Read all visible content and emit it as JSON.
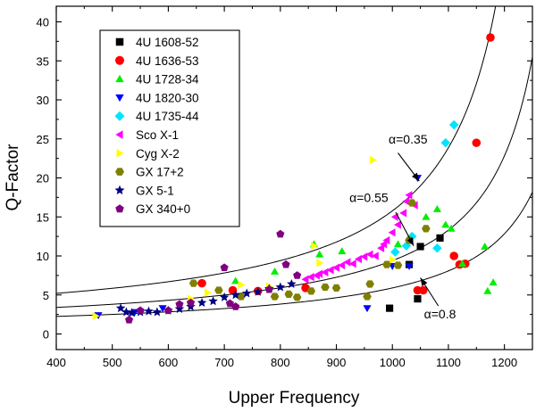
{
  "chart_data": {
    "type": "scatter",
    "title": "",
    "xlabel": "Upper Frequency",
    "ylabel": "Q-Factor",
    "xlim": [
      400,
      1250
    ],
    "ylim": [
      -2,
      42
    ],
    "x_ticks": [
      400,
      500,
      600,
      700,
      800,
      900,
      1000,
      1100,
      1200
    ],
    "y_ticks": [
      0,
      5,
      10,
      15,
      20,
      25,
      30,
      35,
      40
    ],
    "grid": false,
    "legend_position": "top-left",
    "series": [
      {
        "name": "4U 1608-52",
        "marker": "square",
        "color": "#000000",
        "points": [
          [
            995,
            3.3
          ],
          [
            1030,
            8.9
          ],
          [
            1045,
            4.5
          ],
          [
            1050,
            11.2
          ],
          [
            1085,
            12.3
          ]
        ]
      },
      {
        "name": "4U 1636-53",
        "marker": "circle",
        "color": "#ff0000",
        "points": [
          [
            660,
            6.5
          ],
          [
            715,
            5.6
          ],
          [
            760,
            5.5
          ],
          [
            845,
            5.9
          ],
          [
            1045,
            5.6
          ],
          [
            1055,
            5.6
          ],
          [
            1110,
            10.0
          ],
          [
            1120,
            8.9
          ],
          [
            1130,
            9.0
          ],
          [
            1150,
            24.5
          ],
          [
            1175,
            38.0
          ]
        ]
      },
      {
        "name": "4U 1728-34",
        "marker": "triangle-up",
        "color": "#00ee00",
        "points": [
          [
            720,
            6.8
          ],
          [
            790,
            8.0
          ],
          [
            860,
            11.5
          ],
          [
            870,
            10.2
          ],
          [
            910,
            10.6
          ],
          [
            1010,
            11.5
          ],
          [
            1060,
            15.0
          ],
          [
            1080,
            16.0
          ],
          [
            1095,
            14.0
          ],
          [
            1105,
            13.5
          ],
          [
            1125,
            9.0
          ],
          [
            1165,
            11.2
          ],
          [
            1170,
            5.5
          ],
          [
            1180,
            6.6
          ]
        ]
      },
      {
        "name": "4U 1820-30",
        "marker": "triangle-down",
        "color": "#0000ff",
        "points": [
          [
            475,
            2.4
          ],
          [
            540,
            2.8
          ],
          [
            590,
            3.3
          ],
          [
            955,
            3.3
          ],
          [
            1000,
            8.7
          ],
          [
            1030,
            8.7
          ],
          [
            1045,
            20.0
          ]
        ]
      },
      {
        "name": "4U 1735-44",
        "marker": "diamond",
        "color": "#00e5ff",
        "points": [
          [
            1005,
            10.5
          ],
          [
            1025,
            11.3
          ],
          [
            1035,
            12.5
          ],
          [
            1080,
            11.0
          ],
          [
            1095,
            24.5
          ],
          [
            1110,
            26.8
          ]
        ]
      },
      {
        "name": "Sco X-1",
        "marker": "triangle-left",
        "color": "#ff00ff",
        "points": [
          [
            845,
            7.0
          ],
          [
            855,
            7.3
          ],
          [
            865,
            7.5
          ],
          [
            870,
            7.7
          ],
          [
            880,
            7.9
          ],
          [
            890,
            8.2
          ],
          [
            900,
            8.5
          ],
          [
            910,
            8.8
          ],
          [
            920,
            9.2
          ],
          [
            930,
            9.0
          ],
          [
            940,
            9.6
          ],
          [
            950,
            9.9
          ],
          [
            960,
            10.2
          ],
          [
            970,
            10.0
          ],
          [
            980,
            11.0
          ],
          [
            990,
            12.0
          ],
          [
            1000,
            13.0
          ],
          [
            1010,
            14.0
          ],
          [
            1020,
            15.5
          ],
          [
            1025,
            17.0
          ],
          [
            1030,
            17.8
          ],
          [
            1040,
            16.5
          ],
          [
            1005,
            15.0
          ],
          [
            985,
            11.5
          ]
        ]
      },
      {
        "name": "Cyg X-2",
        "marker": "triangle-right",
        "color": "#ffff00",
        "points": [
          [
            470,
            2.3
          ],
          [
            640,
            4.5
          ],
          [
            670,
            5.3
          ],
          [
            730,
            6.3
          ],
          [
            780,
            6.1
          ],
          [
            860,
            11.3
          ],
          [
            870,
            9.1
          ],
          [
            965,
            22.3
          ],
          [
            1000,
            9.5
          ]
        ]
      },
      {
        "name": "GX 17+2",
        "marker": "hexagon",
        "color": "#808000",
        "points": [
          [
            645,
            6.5
          ],
          [
            690,
            5.6
          ],
          [
            730,
            4.8
          ],
          [
            790,
            4.8
          ],
          [
            815,
            5.1
          ],
          [
            830,
            4.7
          ],
          [
            855,
            5.5
          ],
          [
            880,
            6.0
          ],
          [
            900,
            5.9
          ],
          [
            955,
            4.8
          ],
          [
            960,
            6.4
          ],
          [
            990,
            8.9
          ],
          [
            1010,
            8.8
          ],
          [
            1030,
            12.0
          ],
          [
            1035,
            16.8
          ],
          [
            1060,
            13.5
          ]
        ]
      },
      {
        "name": "GX 5-1",
        "marker": "star",
        "color": "#000080",
        "points": [
          [
            515,
            3.3
          ],
          [
            525,
            2.8
          ],
          [
            535,
            2.7
          ],
          [
            550,
            2.8
          ],
          [
            565,
            2.9
          ],
          [
            580,
            2.8
          ],
          [
            600,
            3.0
          ],
          [
            620,
            3.2
          ],
          [
            640,
            3.5
          ],
          [
            660,
            4.0
          ],
          [
            680,
            4.2
          ],
          [
            700,
            4.7
          ],
          [
            720,
            5.0
          ],
          [
            740,
            5.2
          ],
          [
            760,
            5.4
          ],
          [
            780,
            5.8
          ],
          [
            800,
            6.0
          ],
          [
            820,
            6.4
          ]
        ]
      },
      {
        "name": "GX 340+0",
        "marker": "pentagon",
        "color": "#800080",
        "points": [
          [
            530,
            1.8
          ],
          [
            550,
            3.0
          ],
          [
            600,
            3.0
          ],
          [
            620,
            3.8
          ],
          [
            640,
            4.0
          ],
          [
            700,
            8.5
          ],
          [
            710,
            3.9
          ],
          [
            720,
            3.5
          ],
          [
            780,
            5.7
          ],
          [
            800,
            12.8
          ],
          [
            810,
            8.9
          ],
          [
            830,
            7.5
          ]
        ]
      }
    ],
    "curves": [
      {
        "label": "α=0.35",
        "x0": 1295,
        "q_at_400": 5.2
      },
      {
        "label": "α=0.55",
        "x0": 1340,
        "q_at_400": 3.4
      },
      {
        "label": "α=0.8",
        "x0": 1370,
        "q_at_400": 2.25
      }
    ],
    "annotations": [
      {
        "text": "α=0.35",
        "x": 1028,
        "y": 24.4,
        "arrow_from": [
          1010,
          23.2
        ],
        "arrow_to": [
          1048,
          19.6
        ]
      },
      {
        "text": "α=0.55",
        "x": 958,
        "y": 16.9,
        "arrow_from": [
          1006,
          15.6
        ],
        "arrow_to": [
          1038,
          11.3
        ]
      },
      {
        "text": "α=0.8",
        "x": 1085,
        "y": 2.0,
        "arrow_from": [
          1082,
          3.6
        ],
        "arrow_to": [
          1050,
          7.2
        ]
      }
    ]
  }
}
